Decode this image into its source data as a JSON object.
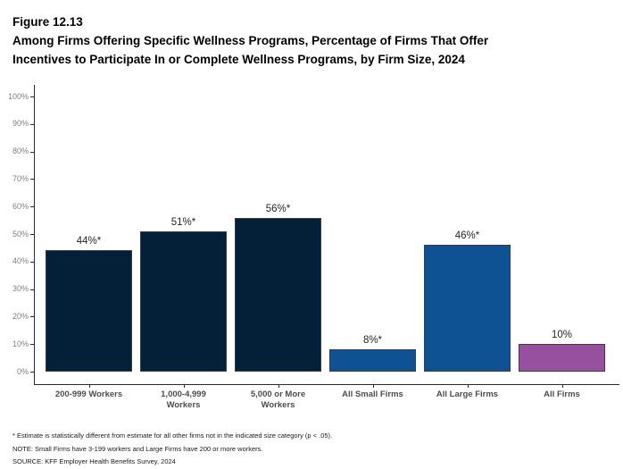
{
  "header": {
    "figure_label": "Figure 12.13",
    "title_line1": "Among Firms Offering Specific Wellness Programs, Percentage of Firms That Offer",
    "title_line2": "Incentives to Participate In or Complete Wellness Programs, by Firm Size, 2024"
  },
  "chart_data": {
    "type": "bar",
    "title": "Among Firms Offering Specific Wellness Programs, Percentage of Firms That Offer Incentives to Participate In or Complete Wellness Programs, by Firm Size, 2024",
    "categories": [
      "200-999 Workers",
      "1,000-4,999\nWorkers",
      "5,000 or More\nWorkers",
      "All Small Firms",
      "All Large Firms",
      "All Firms"
    ],
    "values": [
      44,
      51,
      56,
      8,
      46,
      10
    ],
    "bar_labels": [
      "44%*",
      "51%*",
      "56%*",
      "8%*",
      "46%*",
      "10%"
    ],
    "bar_colors": [
      "#042038",
      "#042038",
      "#042038",
      "#0E5294",
      "#0E5294",
      "#95519E"
    ],
    "ylim": [
      0,
      100
    ],
    "ytick_labels": [
      "0%",
      "10%",
      "20%",
      "30%",
      "40%",
      "50%",
      "60%",
      "70%",
      "80%",
      "90%",
      "100%"
    ],
    "xlabel": "",
    "ylabel": "",
    "grid": false,
    "legend": false
  },
  "colors": {
    "navy": "#042038",
    "blue": "#0E5294",
    "purple": "#95519E",
    "axis": "#2b2b2b"
  },
  "footnotes": {
    "estimate_note": "* Estimate is statistically different from estimate for all other firms not in the indicated size category (p < .05).",
    "note": "NOTE: Small Firms have 3-199 workers and Large Firms have 200 or more workers.",
    "source": "SOURCE: KFF Employer Health Benefits Survey, 2024"
  }
}
